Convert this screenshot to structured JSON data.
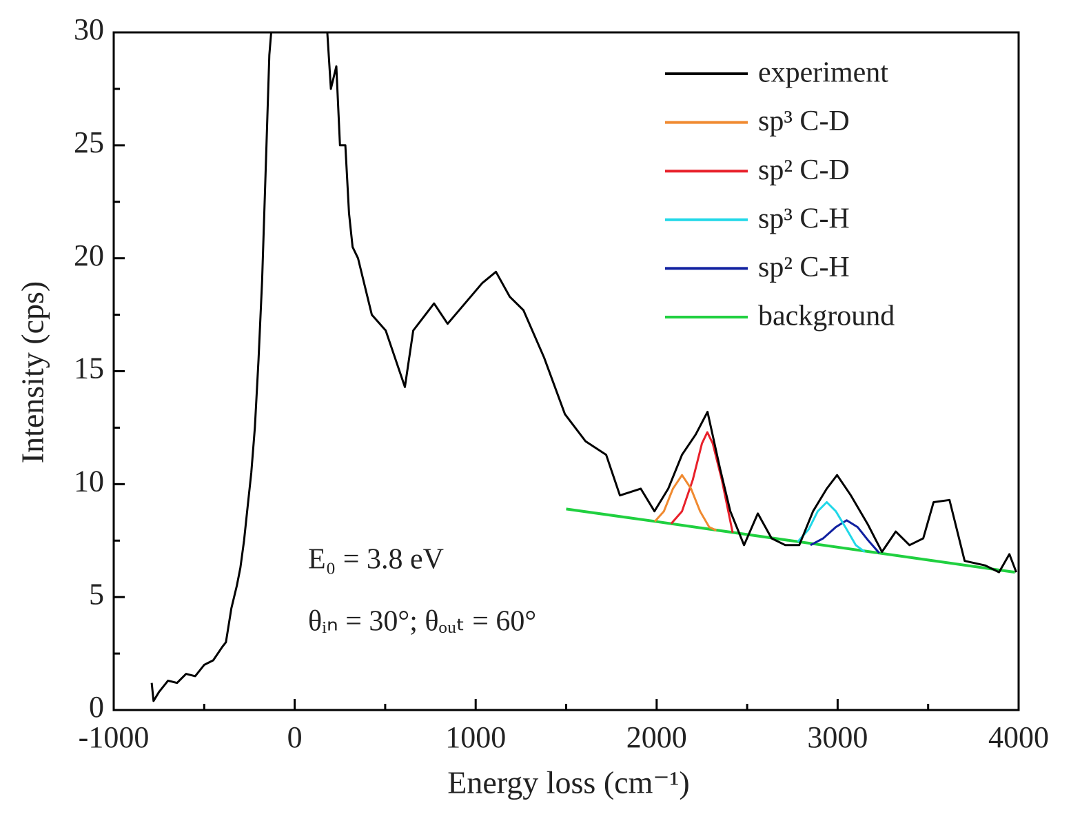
{
  "chart_data": {
    "type": "line",
    "x_label": "Energy loss (cm⁻¹)",
    "y_label": "Intensity (cps)",
    "xlim": [
      -1000,
      4000
    ],
    "ylim": [
      0,
      30
    ],
    "xticks": [
      -1000,
      0,
      1000,
      2000,
      3000,
      4000
    ],
    "yticks": [
      0,
      5,
      10,
      15,
      20,
      25,
      30
    ],
    "x_minor_ticks": [
      -500,
      500,
      1500,
      2500,
      3500
    ],
    "y_minor_ticks": [
      2.5,
      7.5,
      12.5,
      17.5,
      22.5,
      27.5
    ],
    "legend": "upper right",
    "annotations": [
      "E₀ = 3.8 eV",
      "θᵢₙ = 30°; θₒᵤₜ = 60°"
    ],
    "series": [
      {
        "name": "experiment",
        "color": "#000000",
        "x": [
          -790,
          -780,
          -750,
          -700,
          -650,
          -600,
          -550,
          -500,
          -450,
          -400,
          -380,
          -350,
          -320,
          -300,
          -280,
          -260,
          -240,
          -220,
          -200,
          -180,
          -160,
          -140,
          -130,
          25,
          180,
          200,
          230,
          250,
          280,
          300,
          320,
          350,
          426,
          503,
          609,
          655,
          770,
          845,
          1036,
          1112,
          1188,
          1264,
          1378,
          1493,
          1607,
          1721,
          1797,
          1912,
          1988,
          2064,
          2140,
          2216,
          2281,
          2350,
          2407,
          2483,
          2559,
          2635,
          2711,
          2788,
          2864,
          2940,
          2997,
          3073,
          3168,
          3245,
          3321,
          3397,
          3473,
          3530,
          3618,
          3702,
          3816,
          3892,
          3949,
          3987
        ],
        "values": [
          1.2,
          0.4,
          0.8,
          1.3,
          1.2,
          1.6,
          1.5,
          2.0,
          2.2,
          2.8,
          3.0,
          4.5,
          5.5,
          6.3,
          7.5,
          9.0,
          10.5,
          12.5,
          15.5,
          19,
          24,
          29,
          30,
          null,
          30,
          27.5,
          28.5,
          25,
          25,
          22,
          20.5,
          20,
          17.5,
          16.8,
          14.3,
          16.8,
          18,
          17.1,
          18.9,
          19.4,
          18.3,
          17.7,
          15.6,
          13.1,
          11.9,
          11.3,
          9.5,
          9.8,
          8.8,
          9.8,
          11.3,
          12.2,
          13.2,
          10.7,
          8.8,
          7.3,
          8.7,
          7.6,
          7.3,
          7.3,
          8.8,
          9.8,
          10.4,
          9.5,
          8.2,
          7.0,
          7.9,
          7.3,
          7.6,
          9.2,
          9.3,
          6.6,
          6.4,
          6.1,
          6.9,
          6.1
        ]
      },
      {
        "name": "sp³ C-D",
        "color": "#f08a30",
        "x": [
          1990,
          2040,
          2090,
          2140,
          2190,
          2240,
          2290,
          2330
        ],
        "values": [
          8.35,
          8.8,
          9.8,
          10.4,
          9.8,
          8.8,
          8.1,
          7.95
        ]
      },
      {
        "name": "sp² C-D",
        "color": "#e8202a",
        "x": [
          2080,
          2140,
          2200,
          2250,
          2280,
          2310,
          2360,
          2420
        ],
        "values": [
          8.25,
          8.8,
          10.2,
          11.8,
          12.3,
          11.8,
          10.2,
          7.85
        ]
      },
      {
        "name": "sp³ C-H",
        "color": "#20d8e8",
        "x": [
          2780,
          2840,
          2890,
          2940,
          2990,
          3050,
          3100,
          3150
        ],
        "values": [
          7.45,
          8.0,
          8.8,
          9.2,
          8.8,
          8.0,
          7.3,
          7.0
        ]
      },
      {
        "name": "sp² C-H",
        "color": "#1020a0",
        "x": [
          2850,
          2920,
          2990,
          3050,
          3110,
          3170,
          3230
        ],
        "values": [
          7.3,
          7.6,
          8.1,
          8.4,
          8.1,
          7.5,
          6.95
        ]
      },
      {
        "name": "background",
        "color": "#20d040",
        "x": [
          1500,
          2000,
          2500,
          3000,
          3500,
          3980
        ],
        "values": [
          8.9,
          8.34,
          7.77,
          7.21,
          6.64,
          6.1
        ]
      }
    ]
  }
}
